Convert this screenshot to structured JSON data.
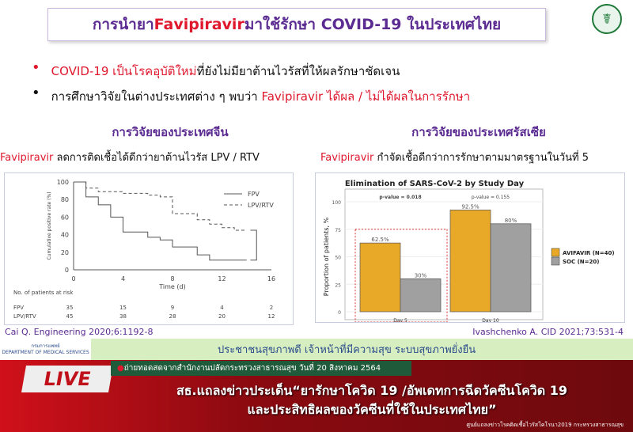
{
  "slide": {
    "title_pre": "การนำยา ",
    "title_drug": "Favipiravir",
    "title_post": " มาใช้รักษา COVID-19 ในประเทศไทย",
    "bullets": [
      {
        "red": "COVID-19 เป็นโรคอุบัติใหม่",
        "text": "ที่ยังไม่มียาต้านไวรัสที่ให้ผลรักษาชัดเจน"
      },
      {
        "text": "การศึกษาวิจัยในต่างประเทศต่าง ๆ พบว่า ",
        "red": "Favipiravir ได้ผล / ไม่ได้ผลในการรักษา"
      }
    ],
    "left": {
      "heading": "การวิจัยของประเทศจีน",
      "sub_drug": "Favipiravir",
      "sub_text": " ลดการติดเชื้อได้ดีกว่ายาต้านไวรัส LPV / RTV",
      "citation": "Cai Q. Engineering 2020;6:1192-8"
    },
    "right": {
      "heading": "การวิจัยของประเทศรัสเซีย",
      "sub_drug": "Favipiravir",
      "sub_text": " กำจัดเชื้อดีกว่าการรักษาตามมาตรฐานในวันที่ 5",
      "citation": "Ivashchenko A. CID 2021;73:531-4"
    }
  },
  "chart_data": [
    {
      "type": "line",
      "step": true,
      "ylabel": "Cumulative positive rate (%)",
      "xlabel": "Time (d)",
      "xlim": [
        0,
        16
      ],
      "ylim": [
        0,
        100
      ],
      "xticks": [
        0,
        4,
        8,
        12,
        16
      ],
      "yticks": [
        0,
        20,
        40,
        60,
        80,
        100
      ],
      "series": [
        {
          "name": "FPV",
          "style": "solid",
          "x": [
            0,
            1,
            2,
            3,
            4,
            6,
            7,
            8,
            10,
            11,
            14
          ],
          "y": [
            100,
            83,
            74,
            60,
            43,
            37,
            34,
            26,
            17,
            11,
            11
          ]
        },
        {
          "name": "LPV/RTV",
          "style": "dashed",
          "x": [
            0,
            1,
            2,
            4,
            6,
            7,
            8,
            8,
            10,
            11,
            12,
            13,
            14
          ],
          "y": [
            100,
            93,
            89,
            87,
            85,
            83,
            81,
            64,
            57,
            52,
            48,
            45,
            45
          ]
        }
      ],
      "risk_table": {
        "label": "No. of patients at risk",
        "rows": [
          {
            "name": "FPV",
            "values": [
              "35",
              "15",
              "9",
              "4",
              "2"
            ]
          },
          {
            "name": "LPV/RTV",
            "values": [
              "45",
              "38",
              "28",
              "20",
              "12"
            ]
          }
        ]
      }
    },
    {
      "type": "bar",
      "title": "Elimination of SARS-CoV-2 by Study Day",
      "ylabel": "Proportion of patients, %",
      "ylim": [
        0,
        100
      ],
      "yticks": [
        0,
        25,
        50,
        75,
        100
      ],
      "categories": [
        "Day 5",
        "Day 10"
      ],
      "series": [
        {
          "name": "AVIFAVIR (N=40)",
          "color": "#e8a928",
          "values": [
            62.5,
            92.5
          ],
          "labels": [
            "62.5%",
            "92.5%"
          ]
        },
        {
          "name": "SOC (N=20)",
          "color": "#a0a0a0",
          "values": [
            30,
            80
          ],
          "labels": [
            "30%",
            "80%"
          ]
        }
      ],
      "annotations": [
        "p-value = 0.018",
        "p-value = 0.155"
      ],
      "highlight": "Day 5",
      "legend": "right"
    }
  ],
  "band": {
    "dms_th": "กรมการแพทย์",
    "dms_en": "DEPARTMENT OF MEDICAL SERVICES",
    "slogan": "ประชาชนสุขภาพดี เจ้าหน้าที่มีความสุข ระบบสุขภาพยั่งยืน"
  },
  "broadcast": {
    "live": "LIVE",
    "ticker": "ถ่ายทอดสดจากสำนักงานปลัดกระทรวงสาธารณสุข วันที่ 20 สิงหาคม 2564",
    "headline1": "สธ.แถลงข่าวประเด็น“ยารักษาโควิด 19 /อัพเดทการฉีดวัคซีนโควิด 19",
    "headline2": "และประสิทธิผลของวัคซีนที่ใช้ในประเทศไทย”",
    "footer": "ศูนย์แถลงข่าวโรคติดเชื้อไวรัสโคโรนา2019 กระทรวงสาธารณสุข"
  }
}
